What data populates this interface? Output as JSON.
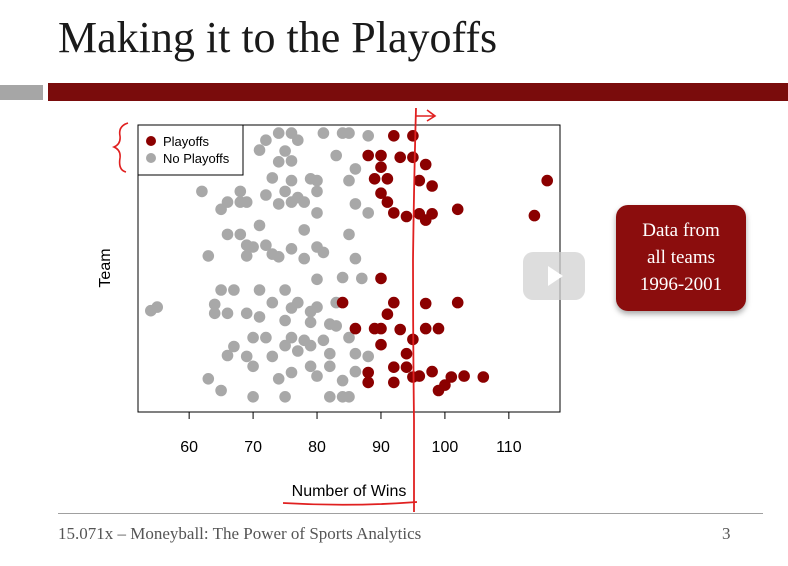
{
  "slide": {
    "title": "Making it to the Playoffs",
    "callout_lines": [
      "Data from",
      "all teams",
      "1996-2001"
    ],
    "footer": "15.071x – Moneyball: The Power of Sports Analytics",
    "page_number": "3",
    "accent_color": "#7a0c0c",
    "icons": [
      "play-icon"
    ]
  },
  "chart_data": {
    "type": "scatter",
    "xlabel": "Number of Wins",
    "ylabel": "Team",
    "xlim": [
      52,
      118
    ],
    "ylim": [
      0,
      32
    ],
    "x_ticks": [
      60,
      70,
      80,
      90,
      100,
      110
    ],
    "legend": {
      "position": "top-left",
      "entries": [
        "Playoffs",
        "No Playoffs"
      ]
    },
    "grid": false,
    "series": [
      {
        "name": "Playoffs",
        "color": "#8b0000",
        "points": [
          [
            92,
            30.8
          ],
          [
            95,
            30.8
          ],
          [
            88,
            28.6
          ],
          [
            90,
            28.6
          ],
          [
            93,
            28.4
          ],
          [
            95,
            28.4
          ],
          [
            97,
            27.6
          ],
          [
            90,
            27.3
          ],
          [
            89,
            26.0
          ],
          [
            91,
            26.0
          ],
          [
            96,
            25.8
          ],
          [
            98,
            25.2
          ],
          [
            116,
            25.8
          ],
          [
            90,
            24.4
          ],
          [
            91,
            23.4
          ],
          [
            92,
            22.2
          ],
          [
            94,
            21.8
          ],
          [
            96,
            22.1
          ],
          [
            98,
            22.1
          ],
          [
            102,
            22.6
          ],
          [
            114,
            21.9
          ],
          [
            97,
            21.4
          ],
          [
            90,
            14.9
          ],
          [
            84,
            12.2
          ],
          [
            92,
            12.2
          ],
          [
            97,
            12.1
          ],
          [
            102,
            12.2
          ],
          [
            91,
            10.9
          ],
          [
            86,
            9.3
          ],
          [
            89,
            9.3
          ],
          [
            90,
            9.3
          ],
          [
            93,
            9.2
          ],
          [
            97,
            9.3
          ],
          [
            99,
            9.3
          ],
          [
            95,
            8.1
          ],
          [
            90,
            7.5
          ],
          [
            94,
            6.5
          ],
          [
            92,
            5.0
          ],
          [
            94,
            5.0
          ],
          [
            88,
            4.4
          ],
          [
            95,
            3.9
          ],
          [
            96,
            4.0
          ],
          [
            98,
            4.5
          ],
          [
            101,
            3.9
          ],
          [
            103,
            4.0
          ],
          [
            106,
            3.9
          ],
          [
            88,
            3.3
          ],
          [
            92,
            3.3
          ],
          [
            100,
            3.0
          ],
          [
            99,
            2.4
          ]
        ]
      },
      {
        "name": "No Playoffs",
        "color": "#a8a8a8",
        "points": [
          [
            72,
            30.3
          ],
          [
            74,
            31.1
          ],
          [
            76,
            31.1
          ],
          [
            77,
            30.3
          ],
          [
            81,
            31.1
          ],
          [
            84,
            31.1
          ],
          [
            85,
            31.1
          ],
          [
            88,
            30.8
          ],
          [
            71,
            29.2
          ],
          [
            75,
            29.1
          ],
          [
            83,
            28.6
          ],
          [
            74,
            27.9
          ],
          [
            76,
            28.0
          ],
          [
            86,
            27.1
          ],
          [
            73,
            26.1
          ],
          [
            76,
            25.8
          ],
          [
            79,
            26.0
          ],
          [
            80,
            25.8
          ],
          [
            85,
            25.8
          ],
          [
            62,
            24.6
          ],
          [
            68,
            24.6
          ],
          [
            72,
            24.2
          ],
          [
            75,
            24.6
          ],
          [
            80,
            24.6
          ],
          [
            77,
            23.9
          ],
          [
            66,
            23.4
          ],
          [
            68,
            23.4
          ],
          [
            69,
            23.4
          ],
          [
            74,
            23.2
          ],
          [
            76,
            23.4
          ],
          [
            78,
            23.4
          ],
          [
            86,
            23.2
          ],
          [
            65,
            22.6
          ],
          [
            80,
            22.2
          ],
          [
            88,
            22.2
          ],
          [
            71,
            20.8
          ],
          [
            78,
            20.3
          ],
          [
            66,
            19.8
          ],
          [
            68,
            19.8
          ],
          [
            85,
            19.8
          ],
          [
            69,
            18.6
          ],
          [
            70,
            18.4
          ],
          [
            72,
            18.6
          ],
          [
            76,
            18.2
          ],
          [
            80,
            18.4
          ],
          [
            81,
            17.8
          ],
          [
            78,
            17.1
          ],
          [
            86,
            17.1
          ],
          [
            63,
            17.4
          ],
          [
            69,
            17.4
          ],
          [
            73,
            17.6
          ],
          [
            74,
            17.3
          ],
          [
            84,
            15.0
          ],
          [
            87,
            14.9
          ],
          [
            80,
            14.8
          ],
          [
            65,
            13.6
          ],
          [
            67,
            13.6
          ],
          [
            71,
            13.6
          ],
          [
            75,
            13.6
          ],
          [
            64,
            12.0
          ],
          [
            73,
            12.2
          ],
          [
            77,
            12.2
          ],
          [
            83,
            12.2
          ],
          [
            54,
            11.3
          ],
          [
            55,
            11.7
          ],
          [
            64,
            11.0
          ],
          [
            66,
            11.0
          ],
          [
            69,
            11.0
          ],
          [
            71,
            10.6
          ],
          [
            76,
            11.6
          ],
          [
            79,
            11.2
          ],
          [
            80,
            11.7
          ],
          [
            75,
            10.2
          ],
          [
            79,
            10.0
          ],
          [
            82,
            9.8
          ],
          [
            83,
            9.6
          ],
          [
            70,
            8.3
          ],
          [
            72,
            8.3
          ],
          [
            76,
            8.3
          ],
          [
            78,
            8.0
          ],
          [
            81,
            8.0
          ],
          [
            85,
            8.3
          ],
          [
            67,
            7.3
          ],
          [
            75,
            7.4
          ],
          [
            77,
            6.8
          ],
          [
            79,
            7.4
          ],
          [
            66,
            6.3
          ],
          [
            69,
            6.2
          ],
          [
            73,
            6.2
          ],
          [
            82,
            6.5
          ],
          [
            86,
            6.5
          ],
          [
            88,
            6.2
          ],
          [
            70,
            5.1
          ],
          [
            79,
            5.1
          ],
          [
            82,
            5.1
          ],
          [
            86,
            4.5
          ],
          [
            76,
            4.4
          ],
          [
            80,
            4.0
          ],
          [
            63,
            3.7
          ],
          [
            74,
            3.7
          ],
          [
            84,
            3.5
          ],
          [
            65,
            2.4
          ],
          [
            70,
            1.7
          ],
          [
            75,
            1.7
          ],
          [
            82,
            1.7
          ],
          [
            84,
            1.7
          ],
          [
            85,
            1.7
          ]
        ]
      }
    ]
  }
}
